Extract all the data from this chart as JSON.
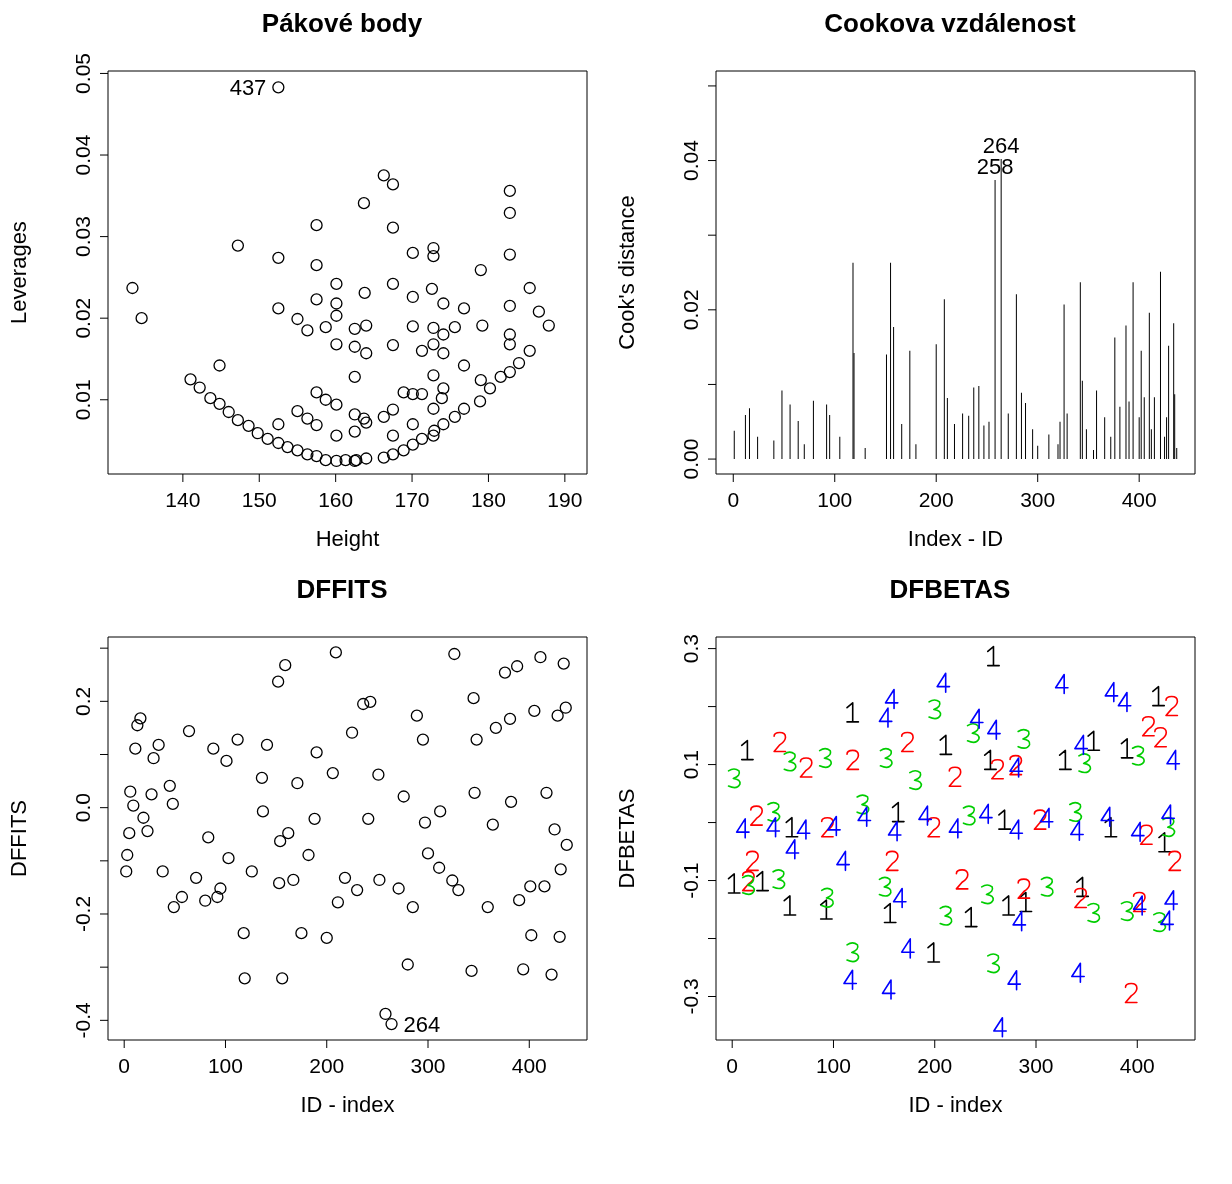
{
  "chart_data": [
    {
      "type": "scatter",
      "title": "Pákové body",
      "xlabel": "Height",
      "ylabel": "Leverages",
      "color": "#000000",
      "marker": "circle",
      "xlim": [
        130.2,
        192.9
      ],
      "ylim": [
        0.0009,
        0.0503
      ],
      "xticks": [
        140,
        150,
        160,
        170,
        180,
        190
      ],
      "yticks": [
        0.01,
        0.02,
        0.03,
        0.04,
        0.05
      ],
      "x": [
        152.5,
        133.4,
        134.6,
        147.2,
        152.5,
        152.5,
        157.5,
        157.5,
        157.5,
        160.1,
        160.1,
        160.1,
        163.7,
        166.3,
        167.5,
        167.5,
        167.5,
        170.1,
        172.8,
        172.8,
        182.8,
        182.8,
        182.8,
        179.0,
        185.4,
        186.6,
        187.9,
        163.8,
        172.6,
        182.8,
        174.1,
        176.8,
        170.1,
        155.0,
        156.3,
        158.7,
        160.1,
        162.5,
        162.5,
        164.0,
        164.0,
        167.5,
        170.1,
        171.3,
        172.8,
        172.8,
        174.1,
        174.1,
        175.6,
        179.2,
        182.8,
        182.8,
        185.4,
        184.0,
        182.8,
        181.6,
        180.2,
        178.9,
        176.8,
        175.6,
        174.1,
        172.9,
        172.8,
        171.3,
        170.1,
        168.9,
        167.5,
        166.3,
        164.0,
        162.7,
        162.5,
        161.3,
        160.1,
        158.7,
        157.5,
        156.3,
        155.0,
        153.7,
        152.5,
        151.1,
        149.8,
        148.6,
        147.2,
        146.0,
        144.8,
        143.6,
        142.2,
        141.0,
        144.8,
        157.5,
        158.7,
        160.1,
        162.5,
        162.5,
        163.7,
        166.3,
        167.5,
        168.9,
        170.1,
        171.3,
        172.8,
        173.9,
        174.1,
        176.8,
        179.0,
        172.8,
        170.1,
        155.0,
        156.3,
        157.5,
        152.5,
        160.1,
        162.5,
        164.0,
        167.5
      ],
      "values": [
        0.0483,
        0.0237,
        0.02,
        0.0289,
        0.0274,
        0.0212,
        0.0314,
        0.0265,
        0.0223,
        0.0242,
        0.0218,
        0.0203,
        0.0341,
        0.0375,
        0.0364,
        0.0311,
        0.0242,
        0.028,
        0.0286,
        0.0276,
        0.0356,
        0.0329,
        0.0278,
        0.0259,
        0.0237,
        0.0208,
        0.0191,
        0.0231,
        0.0236,
        0.0215,
        0.0218,
        0.0212,
        0.0226,
        0.0199,
        0.0185,
        0.0189,
        0.0168,
        0.0187,
        0.0165,
        0.0191,
        0.0157,
        0.0167,
        0.019,
        0.016,
        0.0188,
        0.0168,
        0.018,
        0.0157,
        0.0189,
        0.0191,
        0.018,
        0.0168,
        0.016,
        0.0145,
        0.0134,
        0.0128,
        0.0114,
        0.0098,
        0.0089,
        0.0079,
        0.007,
        0.0062,
        0.0056,
        0.0052,
        0.0045,
        0.0038,
        0.0033,
        0.0029,
        0.0028,
        0.0026,
        0.0025,
        0.0026,
        0.0025,
        0.0026,
        0.0031,
        0.0033,
        0.0038,
        0.0042,
        0.0047,
        0.0052,
        0.0059,
        0.0068,
        0.0075,
        0.0085,
        0.0095,
        0.0102,
        0.0115,
        0.0125,
        0.0142,
        0.0109,
        0.01,
        0.0094,
        0.0128,
        0.0082,
        0.0077,
        0.0079,
        0.0088,
        0.0109,
        0.0107,
        0.0107,
        0.013,
        0.0102,
        0.0114,
        0.0142,
        0.0124,
        0.0089,
        0.007,
        0.0086,
        0.0077,
        0.0069,
        0.007,
        0.0056,
        0.0061,
        0.0072,
        0.0056
      ],
      "annotations": [
        {
          "text": "437",
          "x": 152.5,
          "y": 0.0483
        }
      ]
    },
    {
      "type": "bar",
      "title": "Cookova vzdálenost",
      "xlabel": "Index - ID",
      "ylabel": "Cook's distance",
      "color": "#000000",
      "xlim": [
        -17,
        455
      ],
      "ylim": [
        -0.002,
        0.052
      ],
      "xticks": [
        0,
        100,
        200,
        300,
        400
      ],
      "yticks": [
        {
          "value": 0,
          "label": "0.00"
        },
        {
          "value": 0.01,
          "label": null
        },
        {
          "value": 0.02,
          "label": "0.02"
        },
        {
          "value": 0.03,
          "label": null
        },
        {
          "value": 0.04,
          "label": "0.04"
        },
        {
          "value": 0.05,
          "label": null
        }
      ],
      "x": [
        1,
        12,
        16,
        24,
        40,
        48,
        56,
        64,
        70,
        79,
        92,
        95,
        105,
        118,
        119,
        130,
        151,
        155,
        158,
        166,
        174,
        180,
        200,
        208,
        211,
        218,
        226,
        232,
        237,
        242,
        247,
        252,
        258,
        264,
        271,
        279,
        284,
        288,
        295,
        300,
        311,
        320,
        322,
        326,
        329,
        342,
        344,
        348,
        355,
        358,
        366,
        372,
        376,
        381,
        387,
        390,
        394,
        400,
        402,
        405,
        410,
        412,
        415,
        421,
        425,
        427,
        429,
        434,
        435,
        437
      ],
      "values": [
        0.0038,
        0.0059,
        0.0068,
        0.003,
        0.0025,
        0.0092,
        0.0073,
        0.0051,
        0.002,
        0.0078,
        0.0073,
        0.0059,
        0.003,
        0.0263,
        0.0142,
        0.0015,
        0.014,
        0.0263,
        0.0177,
        0.0047,
        0.0145,
        0.002,
        0.0154,
        0.0214,
        0.0082,
        0.0047,
        0.0061,
        0.0058,
        0.0096,
        0.0098,
        0.0045,
        0.005,
        0.0374,
        0.0402,
        0.0061,
        0.0221,
        0.0089,
        0.0075,
        0.004,
        0.0018,
        0.0033,
        0.002,
        0.005,
        0.0207,
        0.0061,
        0.0237,
        0.0105,
        0.004,
        0.0012,
        0.0092,
        0.0056,
        0.003,
        0.0163,
        0.007,
        0.0179,
        0.0077,
        0.0237,
        0.0056,
        0.0145,
        0.0083,
        0.0196,
        0.004,
        0.0083,
        0.0251,
        0.003,
        0.0056,
        0.0152,
        0.0182,
        0.0087,
        0.0015
      ],
      "annotations": [
        {
          "text": "264",
          "x": 264,
          "y": 0.0402
        },
        {
          "text": "258",
          "x": 258,
          "y": 0.0374
        }
      ]
    },
    {
      "type": "scatter",
      "title": "DFFITS",
      "xlabel": "ID - index",
      "ylabel": "DFFITS",
      "color": "#000000",
      "marker": "circle",
      "xlim": [
        -16,
        457
      ],
      "ylim": [
        -0.437,
        0.321
      ],
      "xticks": [
        0,
        100,
        200,
        300,
        400
      ],
      "yticks": [
        {
          "value": -0.4,
          "label": "-0.4"
        },
        {
          "value": -0.3,
          "label": null
        },
        {
          "value": -0.2,
          "label": "-0.2"
        },
        {
          "value": -0.1,
          "label": null
        },
        {
          "value": 0,
          "label": "0.0"
        },
        {
          "value": 0.1,
          "label": null
        },
        {
          "value": 0.2,
          "label": "0.2"
        },
        {
          "value": 0.3,
          "label": null
        }
      ],
      "x": [
        2,
        3,
        5,
        6,
        9,
        11,
        13,
        16,
        19,
        23,
        27,
        29,
        34,
        38,
        45,
        49,
        57,
        64,
        71,
        80,
        88,
        92,
        95,
        103,
        112,
        118,
        119,
        126,
        136,
        141,
        152,
        153,
        156,
        159,
        162,
        167,
        175,
        182,
        190,
        200,
        209,
        211,
        218,
        225,
        230,
        236,
        243,
        251,
        252,
        258,
        264,
        271,
        280,
        285,
        289,
        295,
        300,
        311,
        324,
        326,
        330,
        343,
        345,
        348,
        359,
        367,
        376,
        381,
        388,
        394,
        390,
        402,
        401,
        405,
        411,
        415,
        422,
        425,
        428,
        430,
        431,
        434,
        436,
        437,
        101,
        171,
        206,
        276,
        346,
        382,
        48,
        137,
        188,
        241,
        312,
        364,
        417,
        83,
        154,
        297
      ],
      "values": [
        -0.12,
        -0.089,
        -0.048,
        0.03,
        0.004,
        0.111,
        0.155,
        0.168,
        -0.019,
        -0.044,
        0.025,
        0.093,
        0.118,
        -0.12,
        0.041,
        -0.187,
        -0.168,
        0.144,
        -0.132,
        -0.175,
        0.111,
        -0.168,
        -0.152,
        -0.095,
        0.128,
        -0.236,
        -0.321,
        -0.12,
        0.056,
        0.118,
        0.237,
        -0.142,
        -0.321,
        0.268,
        -0.048,
        -0.136,
        -0.236,
        -0.089,
        0.104,
        -0.245,
        0.292,
        -0.178,
        -0.132,
        0.141,
        -0.155,
        0.195,
        0.199,
        0.062,
        -0.136,
        -0.388,
        -0.407,
        -0.152,
        -0.295,
        -0.187,
        0.173,
        0.128,
        -0.086,
        -0.113,
        -0.137,
        0.289,
        -0.155,
        -0.307,
        0.206,
        0.128,
        -0.187,
        0.15,
        0.254,
        0.167,
        0.266,
        -0.304,
        -0.174,
        -0.24,
        -0.148,
        0.182,
        0.283,
        -0.148,
        -0.314,
        -0.041,
        0.173,
        -0.243,
        -0.116,
        0.271,
        0.188,
        -0.07,
        0.088,
        0.046,
        0.065,
        0.021,
        0.028,
        0.011,
        0.007,
        -0.007,
        -0.021,
        -0.021,
        -0.007,
        -0.032,
        0.028,
        -0.056,
        -0.063,
        -0.028
      ],
      "annotations": [
        {
          "text": "264",
          "x": 264,
          "y": -0.407
        }
      ]
    },
    {
      "type": "scatter",
      "title": "DFBETAS",
      "xlabel": "ID - index",
      "ylabel": "DFBETAS",
      "xlim": [
        -16,
        457
      ],
      "ylim": [
        -0.375,
        0.32
      ],
      "xticks": [
        0,
        100,
        200,
        300,
        400
      ],
      "yticks": [
        {
          "value": -0.3,
          "label": "-0.3"
        },
        {
          "value": -0.2,
          "label": null
        },
        {
          "value": -0.1,
          "label": "-0.1"
        },
        {
          "value": 0,
          "label": null
        },
        {
          "value": 0.1,
          "label": "0.1"
        },
        {
          "value": 0.2,
          "label": null
        },
        {
          "value": 0.3,
          "label": "0.3"
        }
      ],
      "series": [
        {
          "color": "#000000",
          "x": [
            258,
            119,
            421,
            15,
            211,
            357,
            390,
            57,
            93,
            156,
            236,
            199,
            273,
            290,
            346,
            2,
            30,
            255,
            329,
            59,
            164,
            269,
            374,
            427
          ],
          "values": [
            0.287,
            0.19,
            0.218,
            0.125,
            0.134,
            0.141,
            0.128,
            -0.143,
            -0.15,
            -0.156,
            -0.163,
            -0.224,
            -0.143,
            -0.137,
            -0.111,
            -0.105,
            -0.101,
            0.108,
            0.108,
            -0.008,
            0.018,
            0.005,
            -0.008,
            -0.034
          ]
        },
        {
          "color": "#ff0000",
          "x": [
            47,
            173,
            119,
            434,
            411,
            423,
            394,
            288,
            344,
            402,
            16,
            20,
            73,
            262,
            280,
            220,
            437,
            158,
            227,
            24,
            94,
            199,
            304,
            409
          ],
          "values": [
            0.139,
            0.139,
            0.108,
            0.201,
            0.166,
            0.147,
            -0.294,
            -0.114,
            -0.13,
            -0.137,
            -0.101,
            -0.066,
            0.095,
            0.092,
            0.099,
            0.079,
            -0.066,
            -0.066,
            -0.098,
            0.012,
            -0.008,
            -0.008,
            0.005,
            -0.021
          ]
        },
        {
          "color": "#00cd00",
          "x": [
            200,
            288,
            238,
            119,
            258,
            211,
            357,
            390,
            422,
            94,
            2,
            57,
            92,
            152,
            181,
            348,
            401,
            46,
            16,
            151,
            311,
            252,
            41,
            129,
            234,
            339,
            431
          ],
          "values": [
            0.195,
            0.144,
            0.154,
            -0.224,
            -0.243,
            -0.161,
            -0.156,
            -0.153,
            -0.172,
            -0.13,
            0.076,
            0.105,
            0.111,
            0.111,
            0.073,
            0.102,
            0.115,
            -0.098,
            -0.108,
            -0.111,
            -0.111,
            -0.124,
            0.018,
            0.031,
            0.012,
            0.018,
            -0.008
          ]
        },
        {
          "color": "#0000ff",
          "x": [
            264,
            278,
            283,
            116,
            154,
            173,
            341,
            208,
            325,
            374,
            387,
            157,
            151,
            241,
            258,
            165,
            402,
            429,
            433,
            344,
            435,
            280,
            59,
            109,
            10,
            40,
            70,
            100,
            130,
            160,
            190,
            220,
            250,
            280,
            310,
            340,
            370,
            400,
            430
          ],
          "values": [
            -0.353,
            -0.272,
            -0.17,
            -0.271,
            -0.288,
            -0.217,
            -0.259,
            0.241,
            0.239,
            0.225,
            0.208,
            0.213,
            0.181,
            0.179,
            0.16,
            -0.13,
            -0.143,
            -0.169,
            -0.134,
            0.134,
            0.108,
            0.095,
            -0.046,
            -0.066,
            -0.01,
            -0.008,
            -0.012,
            -0.006,
            0.01,
            -0.015,
            0.012,
            -0.01,
            0.015,
            -0.012,
            0.008,
            -0.014,
            0.01,
            -0.016,
            0.014
          ]
        }
      ]
    }
  ]
}
